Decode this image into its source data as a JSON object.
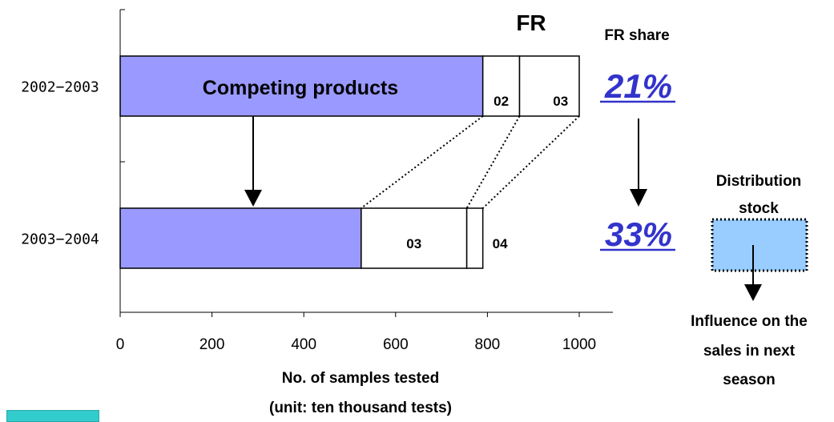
{
  "chart_data": {
    "type": "bar",
    "orientation": "horizontal",
    "stacked": true,
    "categories": [
      "2002-2003",
      "2003-2004"
    ],
    "series": [
      {
        "name": "Competing products",
        "values": [
          790,
          525
        ]
      },
      {
        "name": "02",
        "values": [
          80,
          0
        ]
      },
      {
        "name": "03",
        "values": [
          130,
          230
        ]
      },
      {
        "name": "04",
        "values": [
          0,
          35
        ]
      }
    ],
    "xlim": [
      0,
      1000
    ],
    "xticks": [
      0,
      200,
      400,
      600,
      800,
      1000
    ],
    "xlabel": "No. of samples tested",
    "xlabel_sub": "(unit: ten thousand tests)",
    "grid": false,
    "colors": {
      "competing": "#9999ff",
      "fr": "#ffffff",
      "outline": "#000000",
      "share": "#3333cc",
      "stock": "#99ccff",
      "teal": "#33cccc"
    }
  },
  "annotations": {
    "bar_label": "Competing products",
    "fr_label": "FR",
    "fr_share_title": "FR share",
    "share_2002": "21%",
    "share_2003": "33%",
    "stock_label": "Distribution stock",
    "influence_line1": "Influence on the",
    "influence_line2": "sales in next",
    "influence_line3": "season"
  }
}
